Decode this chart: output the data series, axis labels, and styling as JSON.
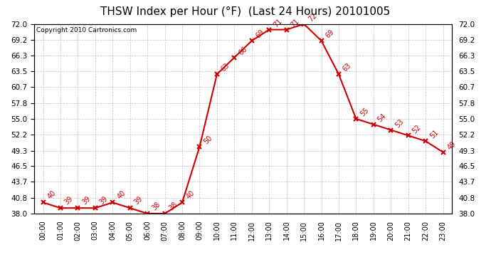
{
  "title": "THSW Index per Hour (°F)  (Last 24 Hours) 20101005",
  "copyright": "Copyright 2010 Cartronics.com",
  "hours": [
    "00:00",
    "01:00",
    "02:00",
    "03:00",
    "04:00",
    "05:00",
    "06:00",
    "07:00",
    "08:00",
    "09:00",
    "10:00",
    "11:00",
    "12:00",
    "13:00",
    "14:00",
    "15:00",
    "16:00",
    "17:00",
    "18:00",
    "19:00",
    "20:00",
    "21:00",
    "22:00",
    "23:00"
  ],
  "values": [
    40,
    39,
    39,
    39,
    40,
    39,
    38,
    38,
    40,
    50,
    63,
    66,
    69,
    71,
    71,
    72,
    69,
    63,
    55,
    54,
    53,
    52,
    51,
    49,
    49
  ],
  "ylim": [
    38.0,
    72.0
  ],
  "yticks": [
    38.0,
    40.8,
    43.7,
    46.5,
    49.3,
    52.2,
    55.0,
    57.8,
    60.7,
    63.5,
    66.3,
    69.2,
    72.0
  ],
  "line_color": "#cc0000",
  "bg_color": "#ffffff",
  "grid_color": "#bbbbbb",
  "title_fontsize": 11,
  "annotation_fontsize": 7,
  "copyright_fontsize": 6.5,
  "tick_fontsize": 7.5,
  "xtick_fontsize": 7
}
